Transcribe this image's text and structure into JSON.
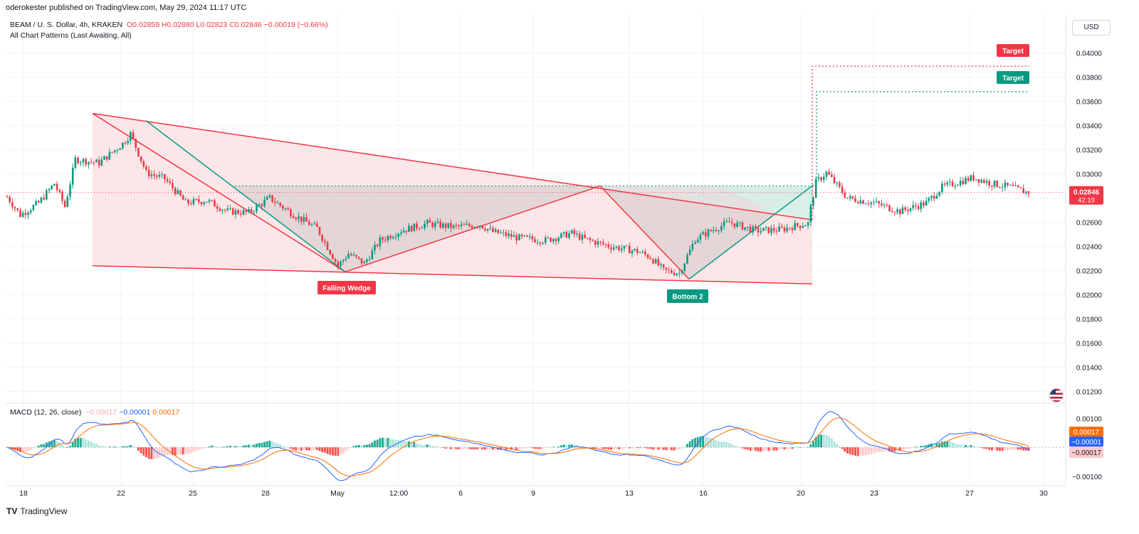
{
  "header": {
    "publisher": "oderokester published on TradingView.com, May 29, 2024 11:17 UTC"
  },
  "legend": {
    "symbol": "BEAM / U. S. Dollar, 4h, KRAKEN",
    "open": "O0.02859",
    "high": "H0.02880",
    "low": "L0.02823",
    "close": "C0.02846",
    "change": "−0.00019 (−0.66%)",
    "indicator": "All Chart Patterns (Last Awaiting, All)"
  },
  "currency_button": "USD",
  "price_label": {
    "price": "0.02846",
    "countdown": "42:19"
  },
  "pattern_labels": {
    "falling_wedge": "Falling Wedge",
    "bottom2": "Bottom 2",
    "target1": "Target",
    "target2": "Target"
  },
  "macd_legend": {
    "name": "MACD (12, 26, close)",
    "hist": "−0.00017",
    "macd": "−0.00001",
    "signal": "0.00017"
  },
  "macd_badges": {
    "signal": "0.00017",
    "macd": "−0.00001",
    "hist": "−0.00017"
  },
  "footer": {
    "logo": "TV",
    "brand": "TradingView"
  },
  "colors": {
    "up": "#089981",
    "down": "#f23645",
    "wedge_fill": "#fde2e4",
    "macd_line": "#2962ff",
    "signal_line": "#ff6d00",
    "grid": "#f0f3fa"
  },
  "chart_data": [
    {
      "type": "candlestick",
      "title": "BEAM / U. S. Dollar, 4h, KRAKEN",
      "x_tick_labels": [
        "18",
        "22",
        "25",
        "28",
        "May",
        "12:00",
        "6",
        "9",
        "13",
        "16",
        "20",
        "23",
        "27",
        "30"
      ],
      "y_tick_labels": [
        "0.04000",
        "0.03800",
        "0.03600",
        "0.03400",
        "0.03200",
        "0.03000",
        "0.02800",
        "0.02600",
        "0.02400",
        "0.02200",
        "0.02000",
        "0.01800",
        "0.01600",
        "0.01400",
        "0.01200"
      ],
      "ylim": [
        0.0111,
        0.0432
      ],
      "grid": true,
      "last_price": 0.02846,
      "series": [
        {
          "name": "BEAM / U. S. Dollar",
          "price_path": [
            [
              0,
              0.0281
            ],
            [
              5,
              0.0266
            ],
            [
              12,
              0.0276
            ],
            [
              18,
              0.0292
            ],
            [
              22,
              0.0273
            ],
            [
              26,
              0.0312
            ],
            [
              35,
              0.0309
            ],
            [
              44,
              0.0325
            ],
            [
              47,
              0.0333
            ],
            [
              53,
              0.0301
            ],
            [
              60,
              0.0296
            ],
            [
              68,
              0.0276
            ],
            [
              76,
              0.0278
            ],
            [
              84,
              0.0269
            ],
            [
              92,
              0.0268
            ],
            [
              100,
              0.028
            ],
            [
              110,
              0.0265
            ],
            [
              118,
              0.0255
            ],
            [
              126,
              0.0224
            ],
            [
              130,
              0.0234
            ],
            [
              136,
              0.0226
            ],
            [
              142,
              0.0245
            ],
            [
              150,
              0.0253
            ],
            [
              160,
              0.0259
            ],
            [
              170,
              0.0256
            ],
            [
              180,
              0.0258
            ],
            [
              185,
              0.0252
            ],
            [
              195,
              0.0247
            ],
            [
              205,
              0.0245
            ],
            [
              215,
              0.0251
            ],
            [
              220,
              0.0246
            ],
            [
              230,
              0.024
            ],
            [
              240,
              0.0236
            ],
            [
              245,
              0.0231
            ],
            [
              250,
              0.022
            ],
            [
              256,
              0.0218
            ],
            [
              262,
              0.0246
            ],
            [
              268,
              0.0253
            ],
            [
              275,
              0.026
            ],
            [
              285,
              0.0253
            ],
            [
              295,
              0.0254
            ],
            [
              300,
              0.0257
            ],
            [
              305,
              0.0259
            ],
            [
              306,
              0.0272
            ],
            [
              308,
              0.0293
            ],
            [
              312,
              0.0301
            ],
            [
              320,
              0.028
            ],
            [
              330,
              0.0276
            ],
            [
              340,
              0.0269
            ],
            [
              350,
              0.0276
            ],
            [
              356,
              0.0289
            ],
            [
              362,
              0.0293
            ],
            [
              368,
              0.0297
            ],
            [
              375,
              0.0292
            ],
            [
              382,
              0.0289
            ],
            [
              388,
              0.0285
            ]
          ]
        }
      ],
      "patterns": {
        "falling_wedge": {
          "label": "Falling Wedge",
          "upper_line": [
            [
              0.035,
              0.0262
            ]
          ],
          "lower_line": [
            [
              0.0224,
              0.0209
            ]
          ],
          "breakout_target": 0.0389
        },
        "double_bottom": {
          "label": "Bottom 2",
          "neckline": 0.029,
          "breakout_target": 0.0368
        }
      }
    },
    {
      "type": "bar",
      "title": "MACD (12, 26, close)",
      "y_tick_labels": [
        "0.00100",
        "−0.00100"
      ],
      "ylim": [
        -0.0013,
        0.0015
      ],
      "series": [
        {
          "name": "MACD",
          "last": -1e-05
        },
        {
          "name": "Signal",
          "last": 0.00017
        },
        {
          "name": "Histogram",
          "last": -0.00017
        }
      ]
    }
  ]
}
